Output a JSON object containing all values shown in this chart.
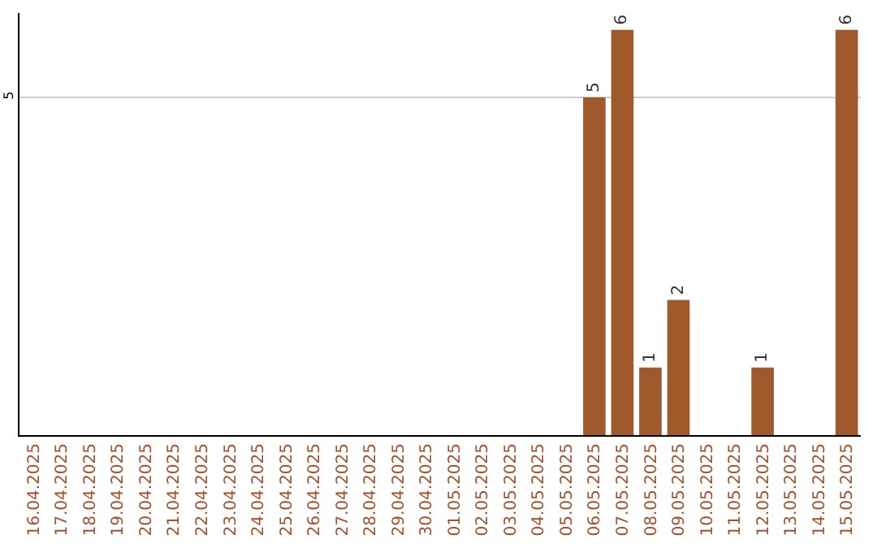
{
  "chart_data": {
    "type": "bar",
    "categories": [
      "16.04.2025",
      "17.04.2025",
      "18.04.2025",
      "19.04.2025",
      "20.04.2025",
      "21.04.2025",
      "22.04.2025",
      "23.04.2025",
      "24.04.2025",
      "25.04.2025",
      "26.04.2025",
      "27.04.2025",
      "28.04.2025",
      "29.04.2025",
      "30.04.2025",
      "01.05.2025",
      "02.05.2025",
      "03.05.2025",
      "04.05.2025",
      "05.05.2025",
      "06.05.2025",
      "07.05.2025",
      "08.05.2025",
      "09.05.2025",
      "10.05.2025",
      "11.05.2025",
      "12.05.2025",
      "13.05.2025",
      "14.05.2025",
      "15.05.2025"
    ],
    "values": [
      null,
      null,
      null,
      null,
      null,
      null,
      null,
      null,
      null,
      null,
      null,
      null,
      null,
      null,
      null,
      null,
      null,
      null,
      null,
      null,
      5,
      6,
      1,
      2,
      null,
      null,
      1,
      null,
      null,
      6
    ],
    "color": "#a0592a",
    "ylim": [
      0,
      6.25
    ],
    "yticks": [
      5
    ],
    "grid": "y",
    "data_labels": true,
    "legend": false
  }
}
